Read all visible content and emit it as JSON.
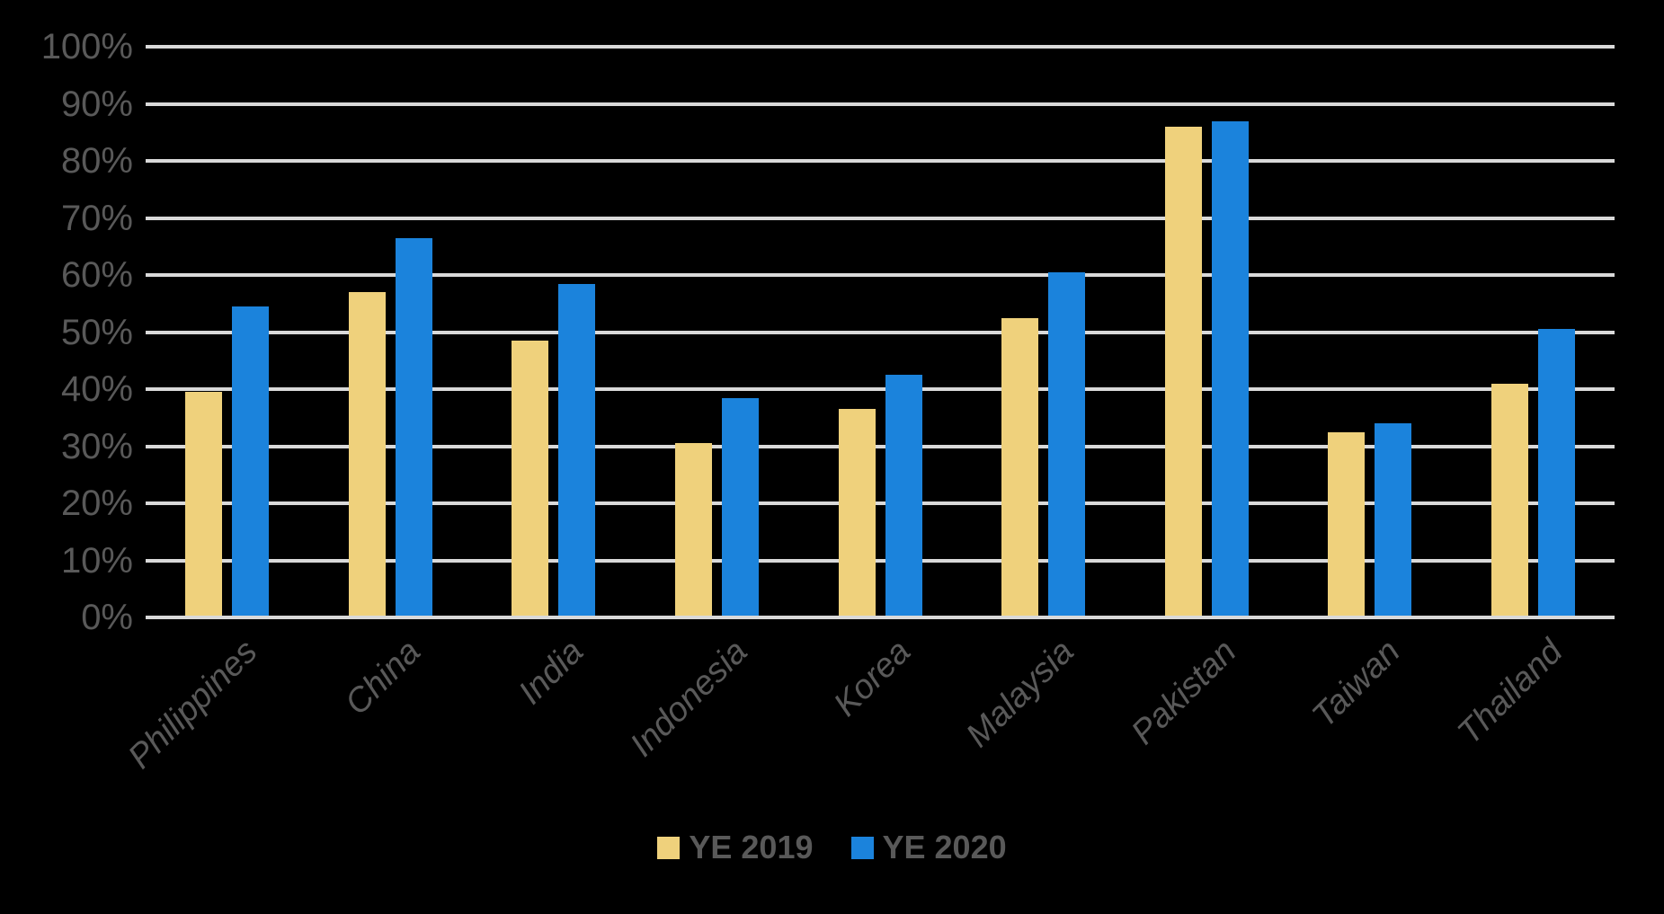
{
  "chart_data": {
    "type": "bar",
    "categories": [
      "Philippines",
      "China",
      "India",
      "Indonesia",
      "Korea",
      "Malaysia",
      "Pakistan",
      "Taiwan",
      "Thailand"
    ],
    "series": [
      {
        "name": "YE 2019",
        "color": "#EFD17C",
        "values": [
          39.5,
          57,
          48.5,
          30.5,
          36.5,
          52.5,
          86,
          32.5,
          41
        ]
      },
      {
        "name": "YE 2020",
        "color": "#1B83DC",
        "values": [
          54.5,
          66.5,
          58.5,
          38.5,
          42.5,
          60.5,
          87,
          34,
          50.5
        ]
      }
    ],
    "title": "",
    "xlabel": "",
    "ylabel": "",
    "ylim": [
      0,
      100
    ],
    "ytick_step": 10,
    "ytick_labels": [
      "0%",
      "10%",
      "20%",
      "30%",
      "40%",
      "50%",
      "60%",
      "70%",
      "80%",
      "90%",
      "100%"
    ],
    "grid": true,
    "legend_position": "bottom"
  },
  "colors": {
    "background": "#000000",
    "gridline": "#D9D9D9",
    "axis_text": "#595959",
    "legend_text": "#595959"
  }
}
